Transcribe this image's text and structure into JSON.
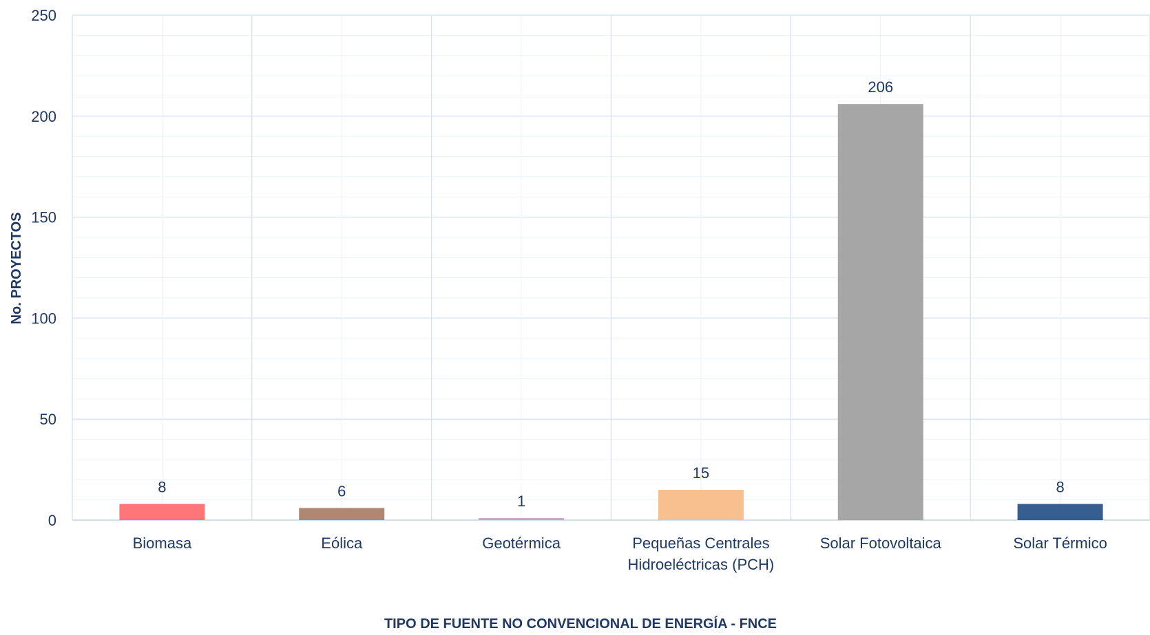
{
  "chart_data": {
    "type": "bar",
    "title": "",
    "xlabel": "TIPO DE FUENTE NO CONVENCIONAL DE ENERGÍA - FNCE",
    "ylabel": "No. PROYECTOS",
    "ylim": [
      0,
      250
    ],
    "yticks": [
      0,
      50,
      100,
      150,
      200,
      250
    ],
    "grid": true,
    "legend": "none",
    "categories": [
      [
        "Biomasa"
      ],
      [
        "Eólica"
      ],
      [
        "Geotérmica"
      ],
      [
        "Pequeñas Centrales",
        "Hidroeléctricas (PCH)"
      ],
      [
        "Solar Fotovoltaica"
      ],
      [
        "Solar Térmico"
      ]
    ],
    "values": [
      8,
      6,
      1,
      15,
      206,
      8
    ],
    "colors": [
      "#ff7578",
      "#b08770",
      "#c4a8c8",
      "#f8c08f",
      "#a6a6a6",
      "#355d8f"
    ],
    "colors_meta": {
      "text": "#1f3864",
      "grid": "#d9e5f2",
      "minor_grid": "#eef3f9",
      "axis": "#c9d6e6"
    }
  }
}
